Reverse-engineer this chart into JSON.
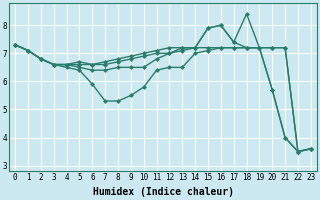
{
  "background_color": "#cce8f0",
  "grid_color": "#ffffff",
  "line_color": "#2a7d6b",
  "line_width": 1.0,
  "marker": "D",
  "marker_size": 2.0,
  "xlabel": "Humidex (Indice chaleur)",
  "xlabel_fontsize": 7.0,
  "xlabel_fontweight": "bold",
  "tick_fontsize": 5.5,
  "xlim": [
    -0.5,
    23.5
  ],
  "ylim": [
    2.8,
    8.8
  ],
  "yticks": [
    3,
    4,
    5,
    6,
    7,
    8
  ],
  "xticks": [
    0,
    1,
    2,
    3,
    4,
    5,
    6,
    7,
    8,
    9,
    10,
    11,
    12,
    13,
    14,
    15,
    16,
    17,
    18,
    19,
    20,
    21,
    22,
    23
  ],
  "series": [
    [
      7.3,
      7.1,
      6.8,
      6.6,
      6.6,
      6.6,
      6.6,
      6.7,
      6.8,
      6.9,
      7.0,
      7.1,
      7.2,
      7.2,
      7.2,
      7.9,
      8.0,
      7.4,
      8.4,
      7.2,
      7.2,
      7.2,
      3.5,
      3.6
    ],
    [
      7.3,
      7.1,
      6.8,
      6.6,
      6.6,
      6.7,
      6.6,
      6.6,
      6.7,
      6.8,
      6.9,
      7.0,
      7.0,
      7.2,
      7.2,
      7.9,
      8.0,
      7.4,
      7.2,
      7.2,
      7.2,
      7.2,
      3.5,
      3.6
    ],
    [
      7.3,
      7.1,
      6.8,
      6.6,
      6.6,
      6.5,
      6.4,
      6.4,
      6.5,
      6.5,
      6.5,
      6.8,
      7.0,
      7.1,
      7.2,
      7.2,
      7.2,
      7.2,
      7.2,
      7.2,
      5.7,
      4.0,
      3.5,
      3.6
    ],
    [
      7.3,
      7.1,
      6.8,
      6.6,
      6.5,
      6.4,
      5.9,
      5.3,
      5.3,
      5.5,
      5.8,
      6.4,
      6.5,
      6.5,
      7.0,
      7.1,
      7.2,
      7.2,
      7.2,
      7.2,
      5.7,
      4.0,
      3.5,
      3.6
    ]
  ]
}
